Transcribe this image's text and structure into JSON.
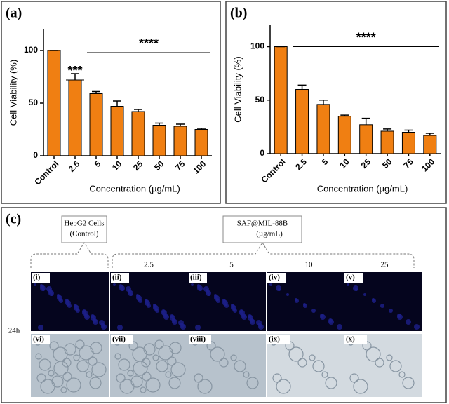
{
  "chart_data": [
    {
      "type": "bar",
      "panel_label": "(a)",
      "xlabel": "Concentration (µg/mL)",
      "ylabel": "Cell Viability (%)",
      "categories": [
        "Control",
        "2.5",
        "5",
        "10",
        "25",
        "50",
        "75",
        "100"
      ],
      "values": [
        100,
        72,
        59,
        47,
        42,
        29,
        28,
        25
      ],
      "errors": [
        0,
        6,
        2,
        5,
        2,
        2,
        2,
        1
      ],
      "color": "#f07f12",
      "ylim": [
        0,
        120
      ],
      "yticks": [
        0,
        50,
        100
      ],
      "annotations": [
        "***",
        "****"
      ]
    },
    {
      "type": "bar",
      "panel_label": "(b)",
      "xlabel": "Concentration (µg/mL)",
      "ylabel": "Cell Viability (%)",
      "categories": [
        "Control",
        "2.5",
        "5",
        "10",
        "25",
        "50",
        "75",
        "100"
      ],
      "values": [
        100,
        60,
        46,
        35,
        27,
        21,
        20,
        17
      ],
      "errors": [
        0,
        4,
        4,
        1,
        6,
        2,
        2,
        2
      ],
      "color": "#f07f12",
      "ylim": [
        0,
        120
      ],
      "yticks": [
        0,
        50,
        100
      ],
      "annotations": [
        "****"
      ]
    }
  ],
  "panel_c": {
    "label": "(c)",
    "control_box": [
      "HepG2 Cells",
      "(Control)"
    ],
    "treatment_box": [
      "SAF@MIL-88B",
      "(µg/mL)"
    ],
    "concentrations": [
      "2.5",
      "5",
      "10",
      "25"
    ],
    "time": "24h",
    "panels": [
      "(i)",
      "(ii)",
      "(iii)",
      "(iv)",
      "(v)",
      "(vi)",
      "(vii)",
      "(viii)",
      "(ix)",
      "(x)"
    ]
  }
}
